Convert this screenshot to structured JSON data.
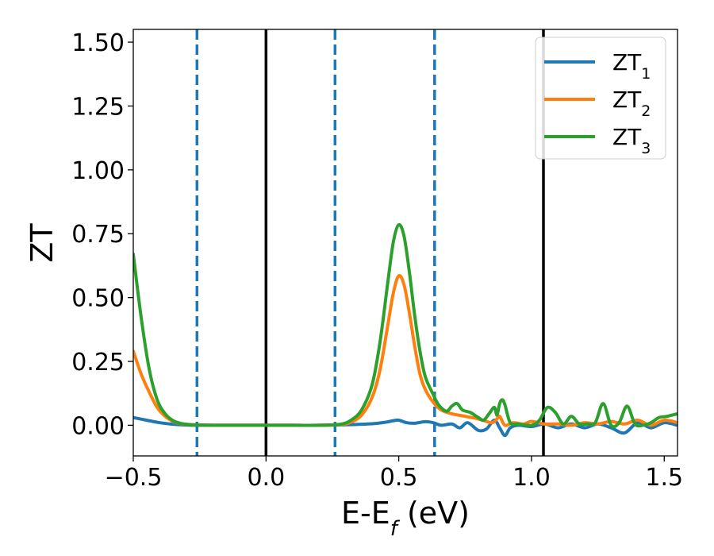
{
  "chart_data": {
    "type": "line",
    "xlabel": "E-E",
    "xlabel_sub": "f",
    "xlabel_unit": " (eV)",
    "ylabel": "ZT",
    "xlim": [
      -0.5,
      1.55
    ],
    "ylim": [
      -0.12,
      1.55
    ],
    "xticks": [
      -0.5,
      0.0,
      0.5,
      1.0,
      1.5
    ],
    "xtick_labels": [
      "−0.5",
      "0.0",
      "0.5",
      "1.0",
      "1.5"
    ],
    "yticks": [
      0.0,
      0.25,
      0.5,
      0.75,
      1.0,
      1.25,
      1.5
    ],
    "ytick_labels": [
      "0.00",
      "0.25",
      "0.50",
      "0.75",
      "1.00",
      "1.25",
      "1.50"
    ],
    "grid": false,
    "legend_position": "top-right",
    "vlines": [
      {
        "x": -0.26,
        "style": "dashed",
        "color": "#1f77b4"
      },
      {
        "x": 0.0,
        "style": "solid",
        "color": "#000000"
      },
      {
        "x": 0.26,
        "style": "dashed",
        "color": "#1f77b4"
      },
      {
        "x": 0.635,
        "style": "dashed",
        "color": "#1f77b4"
      },
      {
        "x": 1.045,
        "style": "solid",
        "color": "#000000"
      }
    ],
    "series": [
      {
        "name": "ZT",
        "sub": "1",
        "color": "#1f77b4",
        "x": [
          -0.5,
          -0.45,
          -0.4,
          -0.35,
          -0.3,
          -0.25,
          -0.2,
          -0.1,
          0.0,
          0.1,
          0.2,
          0.3,
          0.4,
          0.45,
          0.48,
          0.5,
          0.53,
          0.56,
          0.6,
          0.63,
          0.66,
          0.7,
          0.73,
          0.76,
          0.8,
          0.83,
          0.86,
          0.88,
          0.9,
          0.92,
          0.95,
          1.0,
          1.05,
          1.1,
          1.15,
          1.2,
          1.25,
          1.3,
          1.35,
          1.4,
          1.45,
          1.5,
          1.55
        ],
        "y": [
          0.03,
          0.02,
          0.01,
          0.004,
          0.001,
          0.0,
          0.0,
          0.0,
          0.0,
          0.0,
          0.0,
          0.002,
          0.006,
          0.012,
          0.018,
          0.02,
          0.01,
          0.008,
          0.014,
          0.01,
          0.0,
          0.005,
          -0.01,
          0.01,
          -0.02,
          -0.015,
          0.02,
          -0.01,
          -0.04,
          -0.01,
          0.0,
          -0.005,
          0.005,
          -0.01,
          0.005,
          -0.01,
          0.005,
          -0.01,
          -0.03,
          0.01,
          -0.01,
          0.01,
          0.0
        ]
      },
      {
        "name": "ZT",
        "sub": "2",
        "color": "#ff7f0e",
        "x": [
          -0.5,
          -0.47,
          -0.44,
          -0.41,
          -0.38,
          -0.35,
          -0.32,
          -0.28,
          -0.25,
          -0.2,
          -0.1,
          0.0,
          0.1,
          0.2,
          0.28,
          0.32,
          0.36,
          0.4,
          0.43,
          0.46,
          0.48,
          0.5,
          0.52,
          0.54,
          0.56,
          0.58,
          0.6,
          0.63,
          0.66,
          0.7,
          0.75,
          0.8,
          0.85,
          0.87,
          0.88,
          0.9,
          0.93,
          0.97,
          1.0,
          1.05,
          1.1,
          1.15,
          1.2,
          1.25,
          1.3,
          1.35,
          1.4,
          1.45,
          1.5,
          1.55
        ],
        "y": [
          0.29,
          0.2,
          0.13,
          0.07,
          0.035,
          0.015,
          0.006,
          0.002,
          0.001,
          0.0,
          0.0,
          0.0,
          0.0,
          0.0,
          0.003,
          0.012,
          0.04,
          0.11,
          0.22,
          0.4,
          0.52,
          0.585,
          0.55,
          0.44,
          0.31,
          0.2,
          0.14,
          0.09,
          0.06,
          0.045,
          0.035,
          0.025,
          0.01,
          0.025,
          0.035,
          0.0,
          0.01,
          0.005,
          0.015,
          0.005,
          0.005,
          0.0,
          0.01,
          0.005,
          0.015,
          0.005,
          0.02,
          0.0,
          0.02,
          0.01
        ]
      },
      {
        "name": "ZT",
        "sub": "3",
        "color": "#2ca02c",
        "x": [
          -0.5,
          -0.47,
          -0.44,
          -0.41,
          -0.38,
          -0.35,
          -0.32,
          -0.28,
          -0.25,
          -0.2,
          -0.1,
          0.0,
          0.1,
          0.2,
          0.28,
          0.32,
          0.36,
          0.4,
          0.43,
          0.46,
          0.48,
          0.5,
          0.52,
          0.54,
          0.56,
          0.58,
          0.6,
          0.63,
          0.65,
          0.68,
          0.7,
          0.72,
          0.74,
          0.77,
          0.8,
          0.82,
          0.84,
          0.86,
          0.87,
          0.88,
          0.89,
          0.9,
          0.92,
          0.95,
          1.0,
          1.03,
          1.06,
          1.09,
          1.12,
          1.15,
          1.18,
          1.21,
          1.24,
          1.27,
          1.3,
          1.33,
          1.36,
          1.39,
          1.42,
          1.45,
          1.48,
          1.51,
          1.55
        ],
        "y": [
          0.67,
          0.42,
          0.22,
          0.1,
          0.045,
          0.018,
          0.007,
          0.002,
          0.001,
          0.0,
          0.0,
          0.0,
          0.0,
          0.0,
          0.004,
          0.02,
          0.06,
          0.16,
          0.33,
          0.57,
          0.72,
          0.785,
          0.74,
          0.6,
          0.43,
          0.29,
          0.19,
          0.12,
          0.08,
          0.055,
          0.075,
          0.085,
          0.06,
          0.05,
          0.03,
          0.02,
          0.045,
          0.07,
          0.04,
          0.085,
          0.1,
          0.08,
          0.01,
          0.005,
          0.0,
          0.02,
          0.07,
          0.05,
          0.005,
          0.035,
          0.005,
          0.005,
          0.01,
          0.085,
          0.0,
          0.01,
          0.075,
          0.005,
          0.0,
          0.01,
          0.03,
          0.035,
          0.045
        ]
      }
    ]
  }
}
